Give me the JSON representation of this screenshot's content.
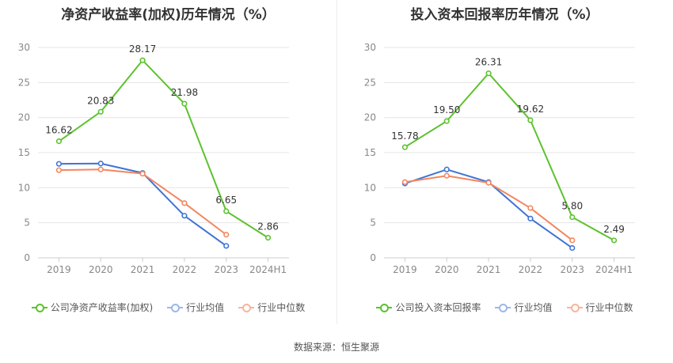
{
  "charts": [
    {
      "title": "净资产收益率(加权)历年情况（%）",
      "legend": [
        "公司净资产收益率(加权)",
        "行业均值",
        "行业中位数"
      ]
    },
    {
      "title": "投入资本回报率历年情况（%）",
      "legend": [
        "公司投入资本回报率",
        "行业均值",
        "行业中位数"
      ]
    }
  ],
  "colors": {
    "company": "#5cc22e",
    "avg": "#3f74d6",
    "median": "#f2875f"
  },
  "source": "数据来源：恒生聚源",
  "chart_data": [
    {
      "type": "line",
      "title": "净资产收益率(加权)历年情况（%）",
      "categories": [
        "2019",
        "2020",
        "2021",
        "2022",
        "2023",
        "2024H1"
      ],
      "ylim": [
        0,
        30
      ],
      "yticks": [
        0,
        5,
        10,
        15,
        20,
        25,
        30
      ],
      "grid": true,
      "legend_position": "bottom",
      "series": [
        {
          "name": "公司净资产收益率(加权)",
          "values": [
            16.62,
            20.83,
            28.17,
            21.98,
            6.65,
            2.86
          ],
          "labels": [
            "16.62",
            "20.83",
            "28.17",
            "21.98",
            "6.65",
            "2.86"
          ]
        },
        {
          "name": "行业均值",
          "values": [
            13.4,
            13.45,
            12.1,
            6.0,
            1.7,
            null
          ]
        },
        {
          "name": "行业中位数",
          "values": [
            12.5,
            12.6,
            12.0,
            7.8,
            3.3,
            null
          ]
        }
      ]
    },
    {
      "type": "line",
      "title": "投入资本回报率历年情况（%）",
      "categories": [
        "2019",
        "2020",
        "2021",
        "2022",
        "2023",
        "2024H1"
      ],
      "ylim": [
        0,
        30
      ],
      "yticks": [
        0,
        5,
        10,
        15,
        20,
        25,
        30
      ],
      "grid": true,
      "legend_position": "bottom",
      "series": [
        {
          "name": "公司投入资本回报率",
          "values": [
            15.78,
            19.5,
            26.31,
            19.62,
            5.8,
            2.49
          ],
          "labels": [
            "15.78",
            "19.50",
            "26.31",
            "19.62",
            "5.80",
            "2.49"
          ]
        },
        {
          "name": "行业均值",
          "values": [
            10.6,
            12.6,
            10.8,
            5.6,
            1.4,
            null
          ]
        },
        {
          "name": "行业中位数",
          "values": [
            10.8,
            11.7,
            10.7,
            7.1,
            2.5,
            null
          ]
        }
      ]
    }
  ]
}
